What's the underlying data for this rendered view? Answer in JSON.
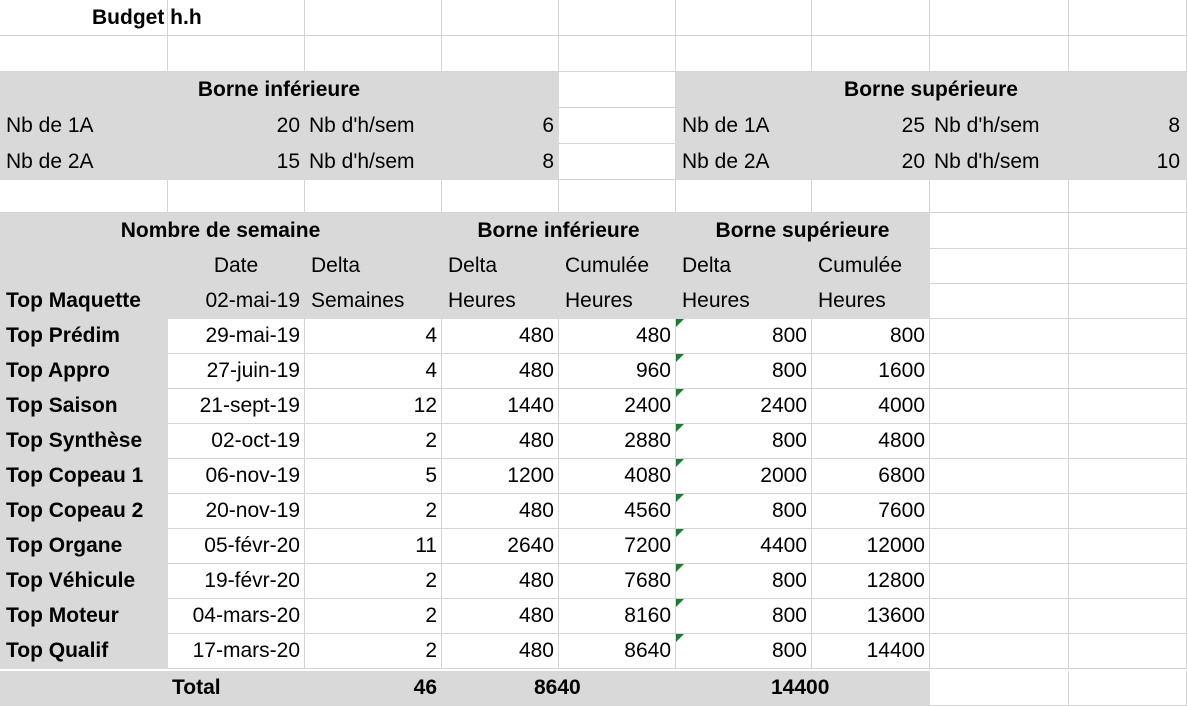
{
  "title": "Budget h.h",
  "lower": {
    "header": "Borne inférieure",
    "rows": [
      {
        "label": "Nb de 1A",
        "n": "20",
        "hlabel": "Nb d'h/sem",
        "h": "6"
      },
      {
        "label": "Nb de 2A",
        "n": "15",
        "hlabel": "Nb d'h/sem",
        "h": "8"
      }
    ]
  },
  "upper": {
    "header": "Borne supérieure",
    "rows": [
      {
        "label": "Nb de 1A",
        "n": "25",
        "hlabel": "Nb d'h/sem",
        "h": "8"
      },
      {
        "label": "Nb de 2A",
        "n": "20",
        "hlabel": "Nb d'h/sem",
        "h": "10"
      }
    ]
  },
  "table": {
    "group_weeks": "Nombre de semaine",
    "group_lower": "Borne inférieure",
    "group_upper": "Borne supérieure",
    "sub1": [
      "",
      "Date",
      "Delta",
      "Delta",
      "Cumulée",
      "Delta",
      "Cumulée"
    ],
    "sub2": [
      "Top Maquette",
      "02-mai-19",
      "Semaines",
      "Heures",
      "Heures",
      "Heures",
      "Heures"
    ],
    "rows": [
      [
        "Top Prédim",
        "29-mai-19",
        "4",
        "480",
        "480",
        "800",
        "800"
      ],
      [
        "Top Appro",
        "27-juin-19",
        "4",
        "480",
        "960",
        "800",
        "1600"
      ],
      [
        "Top Saison",
        "21-sept-19",
        "12",
        "1440",
        "2400",
        "2400",
        "4000"
      ],
      [
        "Top Synthèse",
        "02-oct-19",
        "2",
        "480",
        "2880",
        "800",
        "4800"
      ],
      [
        "Top Copeau 1",
        "06-nov-19",
        "5",
        "1200",
        "4080",
        "2000",
        "6800"
      ],
      [
        "Top Copeau 2",
        "20-nov-19",
        "2",
        "480",
        "4560",
        "800",
        "7600"
      ],
      [
        "Top Organe",
        "05-févr-20",
        "11",
        "2640",
        "7200",
        "4400",
        "12000"
      ],
      [
        "Top Véhicule",
        "19-févr-20",
        "2",
        "480",
        "7680",
        "800",
        "12800"
      ],
      [
        "Top Moteur",
        "04-mars-20",
        "2",
        "480",
        "8160",
        "800",
        "13600"
      ],
      [
        "Top Qualif",
        "17-mars-20",
        "2",
        "480",
        "8640",
        "800",
        "14400"
      ]
    ],
    "total": {
      "label": "Total",
      "weeks": "46",
      "lower": "8640",
      "upper": "14400"
    }
  },
  "colors": {
    "header_fill": "#d9d9d9",
    "grid_line": "#d4d4d4",
    "comment_marker": "#1e7b34"
  }
}
